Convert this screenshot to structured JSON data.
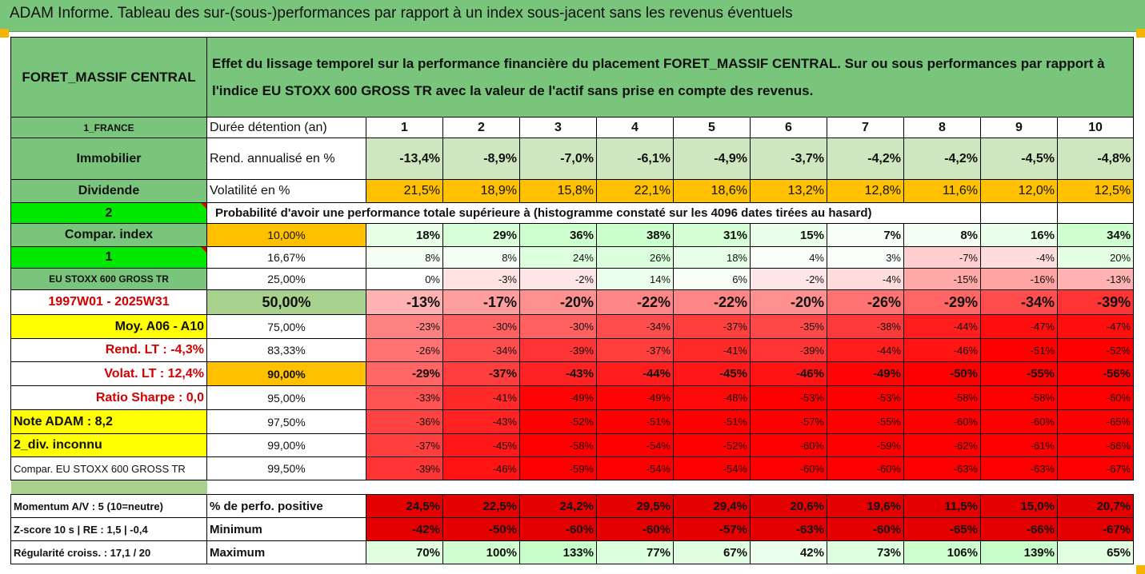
{
  "title": "ADAM Informe. Tableau des sur-(sous-)performances par rapport à un index sous-jacent sans les revenus éventuels",
  "fund_name": "FORET_MASSIF CENTRAL",
  "description": "Effet du lissage temporel sur la performance financière du placement FORET_MASSIF CENTRAL. Sur ou sous performances par rapport à l'indice EU STOXX 600 GROSS TR avec la valeur de l'actif sans prise en compte des revenus.",
  "colors": {
    "green": "#7ac57c",
    "yellow": "#ffff00",
    "orange": "#ffc000",
    "bright_green": "#00e800",
    "red_text": "#d40000"
  },
  "header_rows": [
    {
      "left": "1_FRANCE",
      "label": "Durée détention (an)",
      "values": [
        "1",
        "2",
        "3",
        "4",
        "5",
        "6",
        "7",
        "8",
        "9",
        "10"
      ]
    },
    {
      "left": "Immobilier",
      "label": "Rend. annualisé en %",
      "values": [
        "-13,4%",
        "-8,9%",
        "-7,0%",
        "-6,1%",
        "-4,9%",
        "-3,7%",
        "-4,2%",
        "-4,2%",
        "-4,5%",
        "-4,8%"
      ]
    },
    {
      "left": "Dividende",
      "label": "Volatilité en %",
      "values": [
        "21,5%",
        "18,9%",
        "15,8%",
        "22,1%",
        "18,6%",
        "13,2%",
        "12,8%",
        "11,6%",
        "12,0%",
        "12,5%"
      ]
    }
  ],
  "prob_row": {
    "left": "2",
    "text": "Probabilité d'avoir une performance totale supérieure à (histogramme constaté sur les 4096 dates tirées au hasard)"
  },
  "rows": [
    {
      "left": "Compar. index",
      "pct": "10,00%",
      "values": [
        "18%",
        "29%",
        "36%",
        "38%",
        "31%",
        "15%",
        "7%",
        "8%",
        "16%",
        "34%"
      ]
    },
    {
      "left": "1",
      "pct": "16,67%",
      "values": [
        "8%",
        "8%",
        "24%",
        "26%",
        "18%",
        "4%",
        "3%",
        "-7%",
        "-4%",
        "20%"
      ]
    },
    {
      "left": "EU STOXX 600 GROSS TR",
      "pct": "25,00%",
      "values": [
        "0%",
        "-3%",
        "-2%",
        "14%",
        "6%",
        "-2%",
        "-4%",
        "-15%",
        "-16%",
        "-13%"
      ]
    },
    {
      "left": "1997W01 - 2025W31",
      "pct": "50,00%",
      "values": [
        "-13%",
        "-17%",
        "-20%",
        "-22%",
        "-22%",
        "-20%",
        "-26%",
        "-29%",
        "-34%",
        "-39%"
      ]
    },
    {
      "left": "Moy. A06 - A10",
      "pct": "75,00%",
      "values": [
        "-23%",
        "-30%",
        "-30%",
        "-34%",
        "-37%",
        "-35%",
        "-38%",
        "-44%",
        "-47%",
        "-47%"
      ]
    },
    {
      "left": "Rend. LT :   -4,3%",
      "pct": "83,33%",
      "values": [
        "-26%",
        "-34%",
        "-39%",
        "-37%",
        "-41%",
        "-39%",
        "-44%",
        "-46%",
        "-51%",
        "-52%"
      ]
    },
    {
      "left": "Volat. LT :   12,4%",
      "pct": "90,00%",
      "values": [
        "-29%",
        "-37%",
        "-43%",
        "-44%",
        "-45%",
        "-46%",
        "-49%",
        "-50%",
        "-55%",
        "-56%"
      ]
    },
    {
      "left": "Ratio Sharpe :    0,0",
      "pct": "95,00%",
      "values": [
        "-33%",
        "-41%",
        "-49%",
        "-49%",
        "-48%",
        "-53%",
        "-53%",
        "-58%",
        "-58%",
        "-60%"
      ]
    },
    {
      "left": "Note ADAM : 8,2",
      "pct": "97,50%",
      "values": [
        "-36%",
        "-43%",
        "-52%",
        "-51%",
        "-51%",
        "-57%",
        "-55%",
        "-60%",
        "-60%",
        "-65%"
      ]
    },
    {
      "left": "2_div. inconnu",
      "pct": "99,00%",
      "values": [
        "-37%",
        "-45%",
        "-58%",
        "-54%",
        "-52%",
        "-60%",
        "-59%",
        "-62%",
        "-61%",
        "-66%"
      ]
    },
    {
      "left": "Compar. EU STOXX 600 GROSS TR",
      "pct": "99,50%",
      "values": [
        "-39%",
        "-46%",
        "-59%",
        "-54%",
        "-54%",
        "-60%",
        "-60%",
        "-63%",
        "-63%",
        "-67%"
      ]
    }
  ],
  "footer_rows": [
    {
      "left": "Momentum A/V : 5 (10=neutre)",
      "label": "% de perfo. positive",
      "values": [
        "24,5%",
        "22,5%",
        "24,2%",
        "29,5%",
        "29,4%",
        "20,6%",
        "19,6%",
        "11,5%",
        "15,0%",
        "20,7%"
      ]
    },
    {
      "left": "Z-score 10 s  |  RE : 1,5  |  -0,4",
      "label": "Minimum",
      "values": [
        "-42%",
        "-50%",
        "-60%",
        "-60%",
        "-57%",
        "-63%",
        "-60%",
        "-65%",
        "-66%",
        "-67%"
      ]
    },
    {
      "left": "Régularité croiss. : 17,1 / 20",
      "label": "Maximum",
      "values": [
        "70%",
        "100%",
        "133%",
        "77%",
        "67%",
        "42%",
        "73%",
        "106%",
        "139%",
        "65%"
      ]
    }
  ]
}
